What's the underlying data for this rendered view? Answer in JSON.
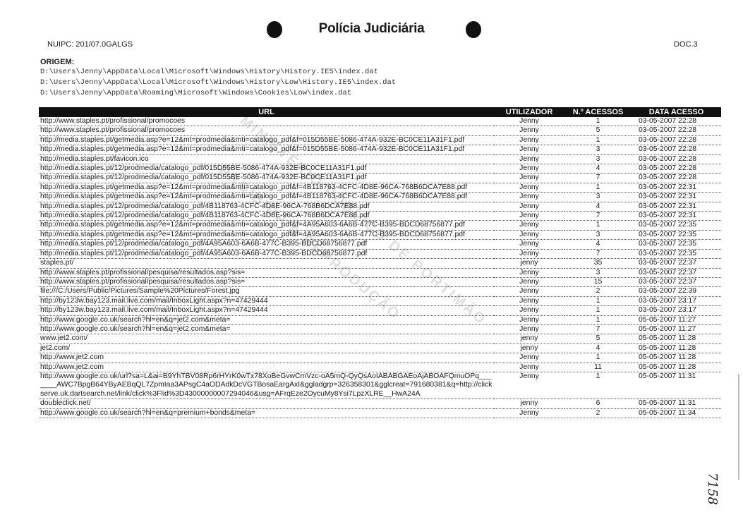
{
  "header": {
    "title": "Polícia Judiciária",
    "nuipc": "NUIPC: 201/07.0GALGS",
    "doc": "DOC.3"
  },
  "origem": {
    "label": "ORIGEM:",
    "paths": [
      "D:\\Users\\Jenny\\AppData\\Local\\Microsoft\\Windows\\History\\History.IE5\\index.dat",
      "D:\\Users\\Jenny\\AppData\\Local\\Microsoft\\Windows\\History\\Low\\History.IE5\\index.dat",
      "D:\\Users\\Jenny\\AppData\\Roaming\\Microsoft\\Windows\\Cookies\\Low\\index.dat"
    ]
  },
  "table": {
    "columns": [
      "URL",
      "UTILIZADOR",
      "N.º ACESSOS",
      "DATA ACESSO"
    ],
    "rows": [
      [
        "http://www.staples.pt/profissional/promocoes",
        "Jenny",
        "1",
        "03-05-2007 22:28"
      ],
      [
        "http://www.staples.pt/profissional/promocoes",
        "Jenny",
        "5",
        "03-05-2007 22:28"
      ],
      [
        "http://media.staples.pt/getmedia.asp?e=12&mt=prodmedia&mti=catalogo_pdf&f=015D55BE-5086-474A-932E-BC0CE11A31F1.pdf",
        "Jenny",
        "1",
        "03-05-2007 22:28"
      ],
      [
        "http://media.staples.pt/getmedia.asp?e=12&mt=prodmedia&mti=catalogo_pdf&f=015D55BE-5086-474A-932E-BC0CE11A31F1.pdf",
        "Jenny",
        "3",
        "03-05-2007 22:28"
      ],
      [
        "http://media.staples.pt/favicon.ico",
        "Jenny",
        "3",
        "03-05-2007 22:28"
      ],
      [
        "http://media.staples.pt/12/prodmedia/catalogo_pdf/015D55BE-5086-474A-932E-BC0CE11A31F1.pdf",
        "Jenny",
        "4",
        "03-05-2007 22:28"
      ],
      [
        "http://media.staples.pt/12/prodmedia/catalogo_pdf/015D55BE-5086-474A-932E-BC0CE11A31F1.pdf",
        "Jenny",
        "7",
        "03-05-2007 22:28"
      ],
      [
        "http://media.staples.pt/getmedia.asp?e=12&mt=prodmedia&mti=catalogo_pdf&f=4B118763-4CFC-4D8E-96CA-768B6DCA7E88.pdf",
        "Jenny",
        "1",
        "03-05-2007 22:31"
      ],
      [
        "http://media.staples.pt/getmedia.asp?e=12&mt=prodmedia&mti=catalogo_pdf&f=4B118763-4CFC-4D8E-96CA-768B6DCA7E88.pdf",
        "Jenny",
        "3",
        "03-05-2007 22:31"
      ],
      [
        "http://media.staples.pt/12/prodmedia/catalogo_pdf/4B118763-4CFC-4D8E-96CA-768B6DCA7E88.pdf",
        "Jenny",
        "4",
        "03-05-2007 22:31"
      ],
      [
        "http://media.staples.pt/12/prodmedia/catalogo_pdf/4B118763-4CFC-4D8E-96CA-768B6DCA7E88.pdf",
        "Jenny",
        "7",
        "03-05-2007 22:31"
      ],
      [
        "http://media.staples.pt/getmedia.asp?e=12&mt=prodmedia&mti=catalogo_pdf&f=4A95A603-6A6B-477C-B395-BDCD68756877.pdf",
        "Jenny",
        "1",
        "03-05-2007 22:35"
      ],
      [
        "http://media.staples.pt/getmedia.asp?e=12&mt=prodmedia&mti=catalogo_pdf&f=4A95A603-6A6B-477C-B395-BDCD68756877.pdf",
        "Jenny",
        "3",
        "03-05-2007 22:35"
      ],
      [
        "http://media.staples.pt/12/prodmedia/catalogo_pdf/4A95A603-6A6B-477C-B395-BDCD68756877.pdf",
        "Jenny",
        "4",
        "03-05-2007 22:35"
      ],
      [
        "http://media.staples.pt/12/prodmedia/catalogo_pdf/4A95A603-6A6B-477C-B395-BDCD68756877.pdf",
        "Jenny",
        "7",
        "03-05-2007 22:35"
      ],
      [
        "staples.pt/",
        "jenny",
        "35",
        "03-05-2007 22:37"
      ],
      [
        "http://www.staples.pt/profissional/pesquisa/resultados.asp?sis=",
        "Jenny",
        "3",
        "03-05-2007 22:37"
      ],
      [
        "http://www.staples.pt/profissional/pesquisa/resultados.asp?sis=",
        "Jenny",
        "15",
        "03-05-2007 22:37"
      ],
      [
        "file:///C:/Users/Public/Pictures/Sample%20Pictures/Forest.jpg",
        "Jenny",
        "2",
        "03-05-2007 22:39"
      ],
      [
        "http://by123w.bay123.mail.live.com/mail/InboxLight.aspx?n=47429444",
        "Jenny",
        "1",
        "03-05-2007 23:17"
      ],
      [
        "http://by123w.bay123.mail.live.com/mail/InboxLight.aspx?n=47429444",
        "Jenny",
        "1",
        "03-05-2007 23:17"
      ],
      [
        "http://www.google.co.uk/search?hl=en&q=jet2.com&meta=",
        "Jenny",
        "1",
        "05-05-2007 11:27"
      ],
      [
        "http://www.google.co.uk/search?hl=en&q=jet2.com&meta=",
        "Jenny",
        "7",
        "05-05-2007 11:27"
      ],
      [
        "www.jet2.com/",
        "jenny",
        "5",
        "05-05-2007 11:28"
      ],
      [
        "jet2.com/",
        "jenny",
        "4",
        "05-05-2007 11:28"
      ],
      [
        "http://www.jet2.com",
        "Jenny",
        "1",
        "05-05-2007 11:28"
      ],
      [
        "http://www.jet2.com",
        "Jenny",
        "11",
        "05-05-2007 11:28"
      ],
      [
        "http://www.google.co.uk/url?sa=L&ai=B9YhTBV08Rp6rHYrK0wTx78XoBeGvwCmVzc-oA5mQ-QyQsAoIABABGAEoAjABOAFQmuOPq_______AWC7BpgB64YByAEBqQL7ZpmIaa3APsgC4aODAdkDcVGTBosaEargAxI&ggladgrp=326358301&gglcreat=791680381&q=http://clickserve.uk.dartsearch.net/link/click%3Flid%3D43000000007294046&usg=AFrqEze2OycuMy8Ysi7LpzXLRE__HwA24A",
        "Jenny",
        "1",
        "05-05-2007 11:31"
      ],
      [
        "doubleclick.net/",
        "jenny",
        "6",
        "05-05-2007 11:31"
      ],
      [
        "http://www.google.co.uk/search?hl=en&q=premium+bonds&meta=",
        "Jenny",
        "2",
        "05-05-2007 11:34"
      ]
    ]
  },
  "watermark": [
    "MINISTÉRIO PÚBLICO DE PORTIMÃO",
    "PROIBIDA A REPRODUÇÃO"
  ],
  "handwritten_note": "7158"
}
